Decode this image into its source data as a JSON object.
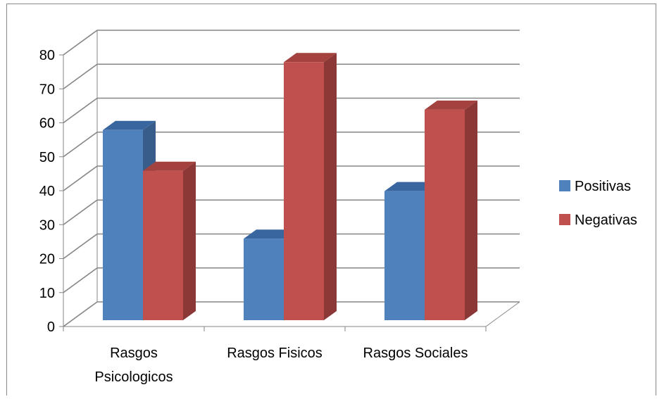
{
  "chart_data": {
    "type": "bar",
    "categories": [
      "Rasgos Psicologicos",
      "Rasgos Fisicos",
      "Rasgos Sociales"
    ],
    "category_lines": [
      [
        "Rasgos",
        "Psicologicos"
      ],
      [
        "Rasgos Fisicos"
      ],
      [
        "Rasgos Sociales"
      ]
    ],
    "series": [
      {
        "name": "Positivas",
        "values": [
          56,
          24,
          38
        ],
        "color": "#4F81BD",
        "side_color": "#385D8A",
        "top_color": "#3A66A0"
      },
      {
        "name": "Negativas",
        "values": [
          44,
          76,
          62
        ],
        "color": "#C0504D",
        "side_color": "#8C3836",
        "top_color": "#A3423F"
      }
    ],
    "ylim": [
      0,
      80
    ],
    "yticks": [
      0,
      10,
      20,
      30,
      40,
      50,
      60,
      70,
      80
    ],
    "grid": true,
    "three_d": true,
    "legend": "right",
    "gridline_color": "#868686"
  }
}
